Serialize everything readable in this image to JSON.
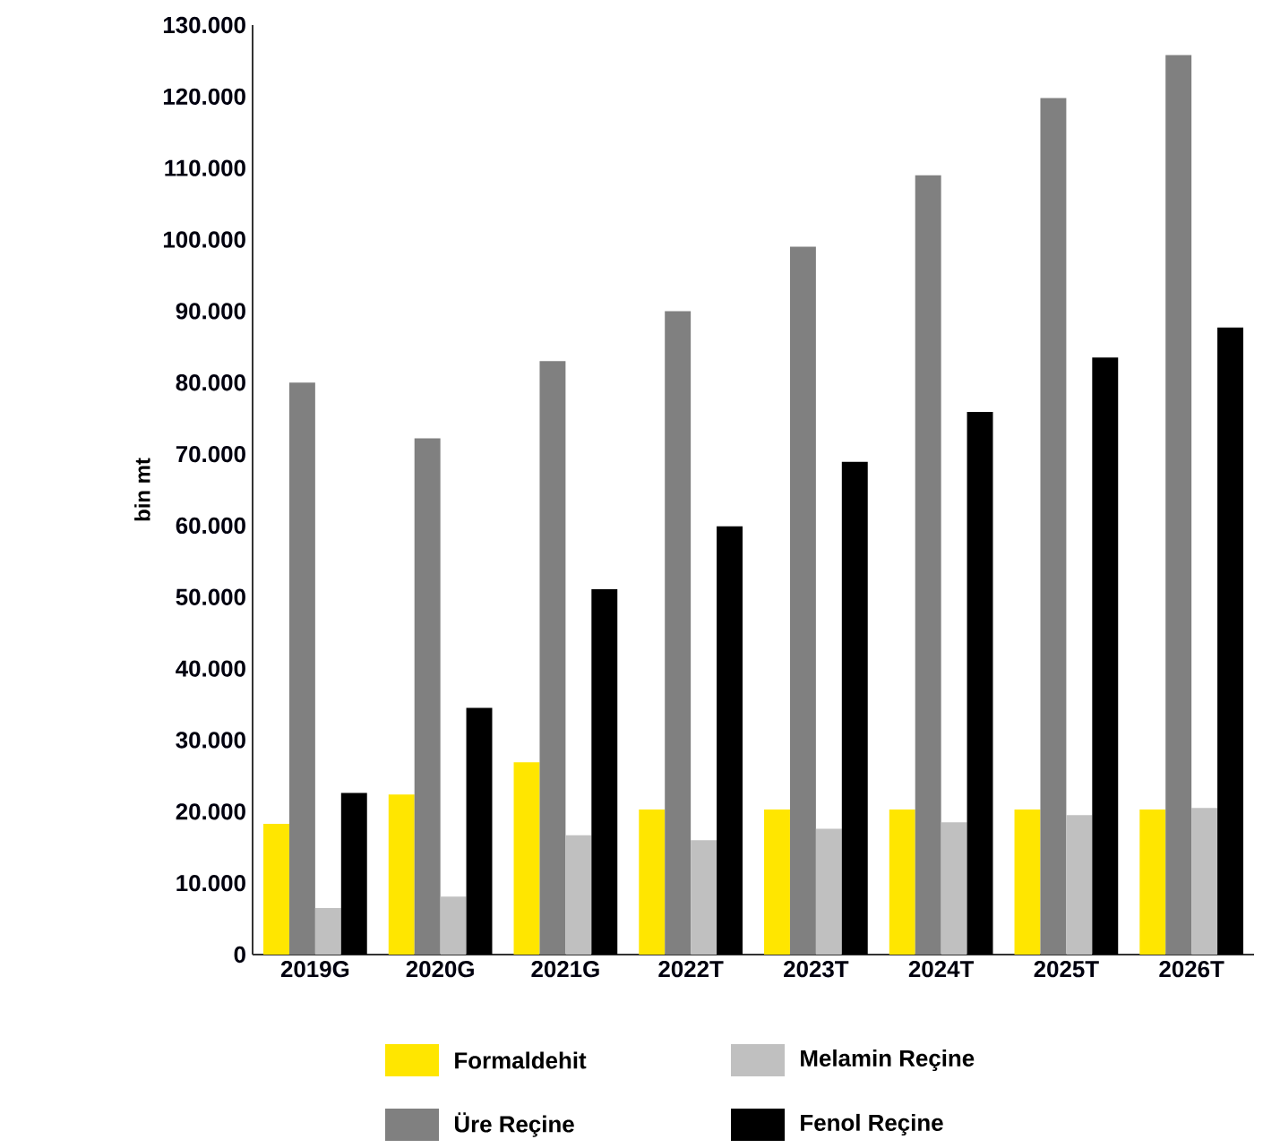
{
  "chart_data": {
    "type": "bar",
    "ylabel": "bin mt",
    "categories": [
      "2019G",
      "2020G",
      "2021G",
      "2022T",
      "2023T",
      "2024T",
      "2025T",
      "2026T"
    ],
    "series": [
      {
        "name": "Formaldehit",
        "color": "#ffe600",
        "values": [
          18300,
          22400,
          26900,
          20300,
          20300,
          20300,
          20300,
          20300
        ]
      },
      {
        "name": "Üre Reçine",
        "color": "#808080",
        "values": [
          80000,
          72200,
          83000,
          90000,
          99000,
          109000,
          119800,
          125800
        ]
      },
      {
        "name": "Melamin Reçine",
        "color": "#c0c0c0",
        "values": [
          6500,
          8100,
          16700,
          16000,
          17600,
          18500,
          19500,
          20500
        ]
      },
      {
        "name": "Fenol Reçine",
        "color": "#000000",
        "values": [
          22600,
          34500,
          51100,
          59900,
          68900,
          75900,
          83500,
          87700
        ]
      }
    ],
    "ylim": [
      0,
      130000
    ],
    "yticks": [
      0,
      {
        "value": 10000,
        "label": "10.000"
      },
      {
        "value": 20000,
        "label": "20.000"
      },
      {
        "value": 30000,
        "label": "30.000"
      },
      {
        "value": 40000,
        "label": "40.000"
      },
      {
        "value": 50000,
        "label": "50.000"
      },
      {
        "value": 60000,
        "label": "60.000"
      },
      {
        "value": 70000,
        "label": "70.000"
      },
      {
        "value": 80000,
        "label": "80.000"
      },
      {
        "value": 90000,
        "label": "90.000"
      },
      {
        "value": 100000,
        "label": "100.000"
      },
      {
        "value": 110000,
        "label": "110.000"
      },
      {
        "value": 120000,
        "label": "120.000"
      },
      {
        "value": 130000,
        "label": "130.000"
      }
    ],
    "grid": false,
    "legend": "bottom"
  }
}
